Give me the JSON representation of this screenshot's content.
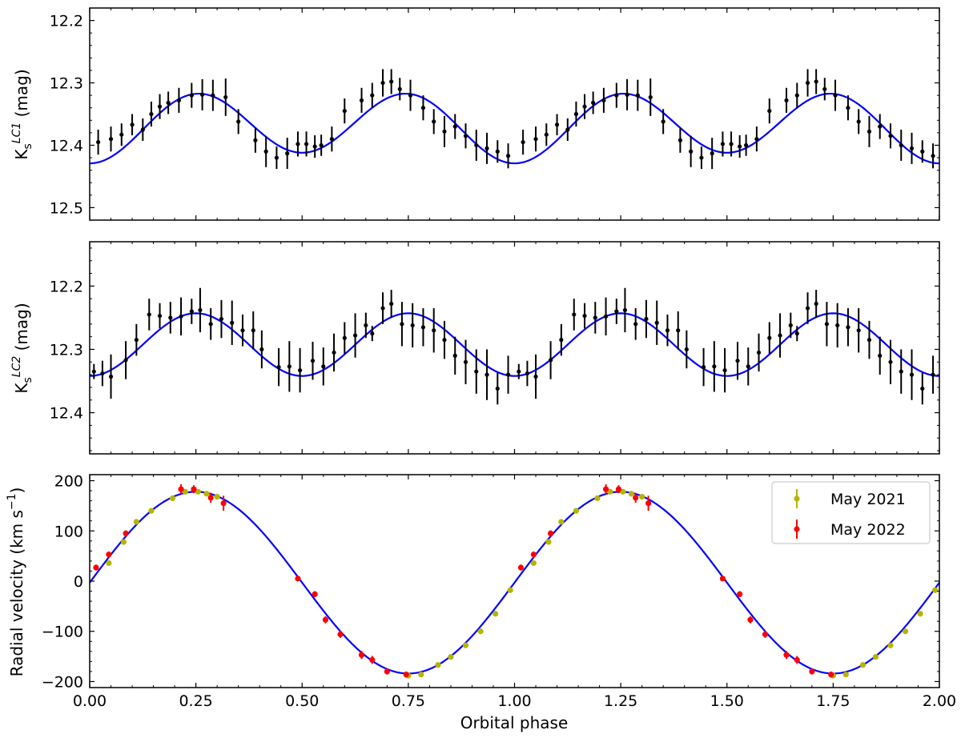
{
  "figure": {
    "xlabel": "Orbital phase",
    "colors": {
      "model": "#0000ff",
      "data": "#000000",
      "may2021": "#b5b500",
      "may2022": "#ff0000"
    }
  },
  "chart_data": [
    {
      "id": "lc1",
      "type": "scatter",
      "title": "",
      "ylabel_base": "K",
      "ylabel_sub": "s",
      "ylabel_sup": "LC1",
      "ylabel_unit": " (mag)",
      "ylim": [
        12.52,
        12.18
      ],
      "inverted_y": true,
      "yticks": [
        12.2,
        12.3,
        12.4,
        12.5
      ],
      "ytick_labels": [
        "12.2",
        "12.3",
        "12.4",
        "12.5"
      ],
      "xlim": [
        0.0,
        2.0
      ],
      "grid": false,
      "model": {
        "name": "",
        "type": "line",
        "mean": 12.369,
        "amp1": 0.0515,
        "amp2": -0.0085
      },
      "series": [
        {
          "x": [
            0.02,
            0.05,
            0.075,
            0.1,
            0.125,
            0.145,
            0.165,
            0.185,
            0.21,
            0.24,
            0.265,
            0.29,
            0.32,
            0.35,
            0.39,
            0.415,
            0.44,
            0.465,
            0.49,
            0.51,
            0.53,
            0.545,
            0.57,
            0.6,
            0.64,
            0.665,
            0.69,
            0.71,
            0.73,
            0.755,
            0.785,
            0.81,
            0.835,
            0.86,
            0.885,
            0.91,
            0.935,
            0.96,
            0.985
          ],
          "y": [
            12.395,
            12.39,
            12.383,
            12.367,
            12.375,
            12.35,
            12.338,
            12.332,
            12.328,
            12.32,
            12.319,
            12.32,
            12.323,
            12.362,
            12.392,
            12.41,
            12.42,
            12.413,
            12.398,
            12.398,
            12.402,
            12.4,
            12.39,
            12.345,
            12.328,
            12.32,
            12.3,
            12.298,
            12.31,
            12.32,
            12.34,
            12.362,
            12.378,
            12.37,
            12.385,
            12.4,
            12.405,
            12.41,
            12.417
          ],
          "yerr": [
            0.02,
            0.02,
            0.018,
            0.017,
            0.018,
            0.02,
            0.02,
            0.018,
            0.02,
            0.02,
            0.025,
            0.025,
            0.03,
            0.02,
            0.02,
            0.025,
            0.018,
            0.025,
            0.02,
            0.02,
            0.018,
            0.017,
            0.02,
            0.02,
            0.02,
            0.02,
            0.022,
            0.02,
            0.018,
            0.025,
            0.02,
            0.02,
            0.025,
            0.02,
            0.02,
            0.025,
            0.025,
            0.018,
            0.02
          ]
        }
      ]
    },
    {
      "id": "lc2",
      "type": "scatter",
      "title": "",
      "ylabel_base": "K",
      "ylabel_sub": "s",
      "ylabel_sup": "LC2",
      "ylabel_unit": " (mag)",
      "ylim": [
        12.465,
        12.13
      ],
      "inverted_y": true,
      "yticks": [
        12.2,
        12.3,
        12.4
      ],
      "ytick_labels": [
        "12.2",
        "12.3",
        "12.4"
      ],
      "xlim": [
        0.0,
        2.0
      ],
      "grid": false,
      "model": {
        "name": "",
        "type": "line",
        "mean": 12.2925,
        "amp1": 0.0495,
        "amp2": 0.0
      },
      "series": [
        {
          "x": [
            0.01,
            0.03,
            0.05,
            0.085,
            0.11,
            0.14,
            0.165,
            0.19,
            0.215,
            0.24,
            0.26,
            0.285,
            0.31,
            0.335,
            0.36,
            0.385,
            0.405,
            0.445,
            0.47,
            0.495,
            0.525,
            0.55,
            0.575,
            0.6,
            0.625,
            0.65,
            0.665,
            0.69,
            0.71,
            0.735,
            0.76,
            0.785,
            0.81,
            0.835,
            0.86,
            0.885,
            0.91,
            0.935,
            0.96,
            0.985
          ],
          "y": [
            12.335,
            12.338,
            12.343,
            12.317,
            12.285,
            12.245,
            12.247,
            12.25,
            12.248,
            12.24,
            12.238,
            12.26,
            12.252,
            12.258,
            12.27,
            12.27,
            12.3,
            12.328,
            12.327,
            12.333,
            12.318,
            12.327,
            12.305,
            12.282,
            12.278,
            12.262,
            12.275,
            12.235,
            12.228,
            12.26,
            12.262,
            12.265,
            12.27,
            12.285,
            12.31,
            12.32,
            12.335,
            12.34,
            12.362,
            12.34
          ],
          "yerr": [
            0.012,
            0.02,
            0.035,
            0.03,
            0.025,
            0.025,
            0.02,
            0.025,
            0.03,
            0.02,
            0.035,
            0.025,
            0.03,
            0.035,
            0.025,
            0.03,
            0.03,
            0.03,
            0.04,
            0.035,
            0.03,
            0.03,
            0.03,
            0.025,
            0.035,
            0.02,
            0.012,
            0.025,
            0.022,
            0.035,
            0.035,
            0.03,
            0.035,
            0.03,
            0.03,
            0.035,
            0.035,
            0.04,
            0.025,
            0.03
          ]
        }
      ]
    },
    {
      "id": "rv",
      "type": "scatter",
      "title": "",
      "ylabel": "Radial velocity (km s",
      "ylabel_sup": "−1",
      "ylabel_end": ")",
      "xlabel": "Orbital phase",
      "ylim": [
        -212,
        212
      ],
      "yticks": [
        -200,
        -100,
        0,
        100,
        200
      ],
      "ytick_labels": [
        "−200",
        "−100",
        "0",
        "100",
        "200"
      ],
      "xlim": [
        0.0,
        2.0
      ],
      "xticks": [
        0.0,
        0.25,
        0.5,
        0.75,
        1.0,
        1.25,
        1.5,
        1.75,
        2.0
      ],
      "xtick_labels": [
        "0.00",
        "0.25",
        "0.50",
        "0.75",
        "1.00",
        "1.25",
        "1.50",
        "1.75",
        "2.00"
      ],
      "grid": false,
      "legend": "top-right",
      "model": {
        "name": "",
        "type": "line",
        "K": 181,
        "offset": -3
      },
      "series": [
        {
          "name": "May 2021",
          "color": "#b5b500",
          "x": [
            0.045,
            0.08,
            0.11,
            0.145,
            0.195,
            0.225,
            0.255,
            0.275,
            0.3,
            0.75,
            0.78,
            0.82,
            0.85,
            0.885,
            0.92,
            0.955,
            0.99
          ],
          "y": [
            36,
            78,
            118,
            140,
            165,
            178,
            178,
            174,
            168,
            -188,
            -186,
            -167,
            -151,
            -128,
            -100,
            -65,
            -18
          ],
          "yerr": [
            5,
            5,
            5,
            5,
            5,
            5,
            5,
            5,
            5,
            6,
            5,
            5,
            5,
            5,
            5,
            5,
            5
          ]
        },
        {
          "name": "May 2022",
          "color": "#ff0000",
          "x": [
            0.015,
            0.045,
            0.085,
            0.215,
            0.245,
            0.285,
            0.315,
            0.49,
            0.53,
            0.555,
            0.59,
            0.64,
            0.665,
            0.7,
            0.745
          ],
          "y": [
            27,
            53,
            95,
            183,
            183,
            166,
            155,
            5,
            -26,
            -77,
            -106,
            -147,
            -157,
            -180,
            -186
          ],
          "yerr": [
            6,
            6,
            6,
            10,
            8,
            10,
            15,
            5,
            6,
            7,
            7,
            8,
            8,
            6,
            6
          ]
        }
      ]
    }
  ]
}
